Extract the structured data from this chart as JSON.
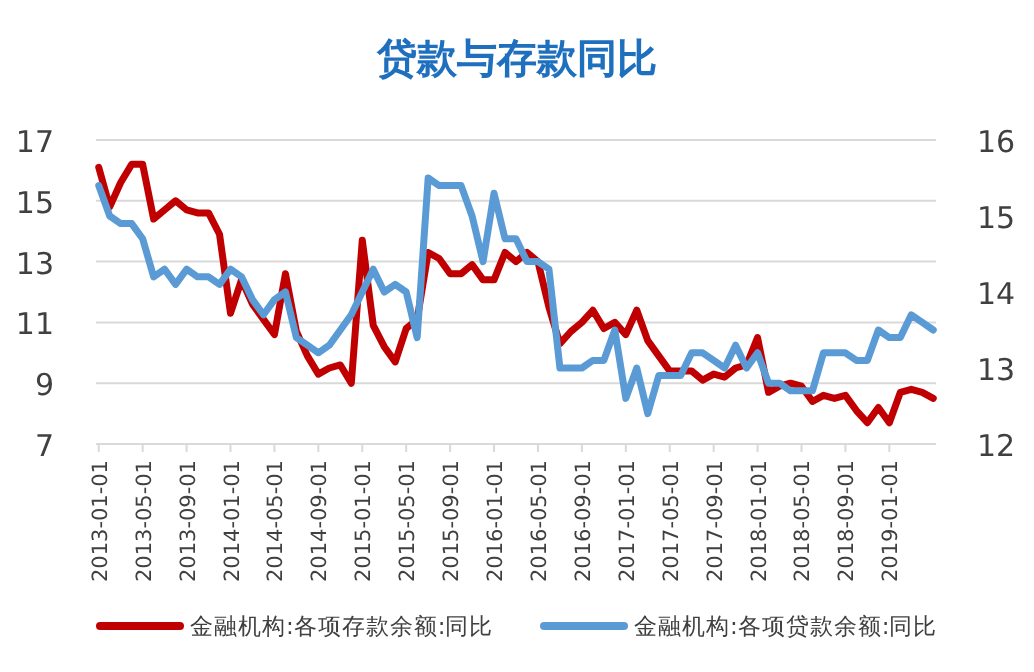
{
  "chart_data": {
    "type": "line",
    "title": "贷款与存款同比",
    "categories": [
      "2013-01-01",
      null,
      null,
      null,
      "2013-05-01",
      null,
      null,
      null,
      "2013-09-01",
      null,
      null,
      null,
      "2014-01-01",
      null,
      null,
      null,
      "2014-05-01",
      null,
      null,
      null,
      "2014-09-01",
      null,
      null,
      null,
      "2015-01-01",
      null,
      null,
      null,
      "2015-05-01",
      null,
      null,
      null,
      "2015-09-01",
      null,
      null,
      null,
      "2016-01-01",
      null,
      null,
      null,
      "2016-05-01",
      null,
      null,
      null,
      "2016-09-01",
      null,
      null,
      null,
      "2017-01-01",
      null,
      null,
      null,
      "2017-05-01",
      null,
      null,
      null,
      "2017-09-01",
      null,
      null,
      null,
      "2018-01-01",
      null,
      null,
      null,
      "2018-05-01",
      null,
      null,
      null,
      "2018-09-01",
      null,
      null,
      null,
      "2019-01-01",
      null,
      null,
      null,
      null
    ],
    "series": [
      {
        "name": "金融机构:各项存款余额:同比",
        "color": "#c00000",
        "values": [
          16.1,
          14.8,
          15.6,
          16.2,
          16.2,
          14.4,
          14.7,
          15.0,
          14.7,
          14.6,
          14.6,
          13.9,
          11.3,
          12.4,
          11.6,
          11.1,
          10.6,
          12.6,
          10.7,
          9.9,
          9.3,
          9.5,
          9.6,
          9.0,
          13.7,
          10.9,
          10.2,
          9.7,
          10.8,
          11.1,
          13.3,
          13.1,
          12.6,
          12.6,
          12.9,
          12.4,
          12.4,
          13.3,
          13.0,
          13.3,
          13.0,
          11.5,
          10.3,
          10.7,
          11.0,
          11.4,
          10.8,
          11.0,
          10.6,
          11.4,
          10.4,
          9.9,
          9.4,
          9.4,
          9.4,
          9.1,
          9.3,
          9.2,
          9.5,
          9.6,
          10.5,
          8.7,
          8.9,
          9.0,
          8.9,
          8.4,
          8.6,
          8.5,
          8.6,
          8.1,
          7.7,
          8.2,
          7.7,
          8.7,
          8.8,
          8.7,
          8.5
        ]
      },
      {
        "name": "金融机构:各项贷款余额:同比",
        "color": "#5b9bd5",
        "axis": "y2",
        "values": [
          15.4,
          15.0,
          14.9,
          14.9,
          14.7,
          14.2,
          14.3,
          14.1,
          14.3,
          14.2,
          14.2,
          14.1,
          14.3,
          14.2,
          13.9,
          13.7,
          13.9,
          14.0,
          13.4,
          13.3,
          13.2,
          13.3,
          13.5,
          13.7,
          14.0,
          14.3,
          14.0,
          14.1,
          14.0,
          13.4,
          15.5,
          15.4,
          15.4,
          15.4,
          15.0,
          14.4,
          15.3,
          14.7,
          14.7,
          14.4,
          14.4,
          14.3,
          13.0,
          13.0,
          13.0,
          13.1,
          13.1,
          13.5,
          12.6,
          13.0,
          12.4,
          12.9,
          12.9,
          12.9,
          13.2,
          13.2,
          13.1,
          13.0,
          13.3,
          13.0,
          13.2,
          12.8,
          12.8,
          12.7,
          12.7,
          12.7,
          13.2,
          13.2,
          13.2,
          13.1,
          13.1,
          13.5,
          13.4,
          13.4,
          13.7,
          13.6,
          13.5
        ]
      }
    ],
    "ylim": [
      7,
      17
    ],
    "yticks": [
      7,
      9,
      11,
      13,
      15,
      17
    ],
    "y2lim": [
      12,
      16
    ],
    "y2ticks": [
      12,
      13,
      14,
      15,
      16
    ],
    "grid": "y",
    "legend": "bottom",
    "line_style": "solid",
    "marker": "none"
  }
}
